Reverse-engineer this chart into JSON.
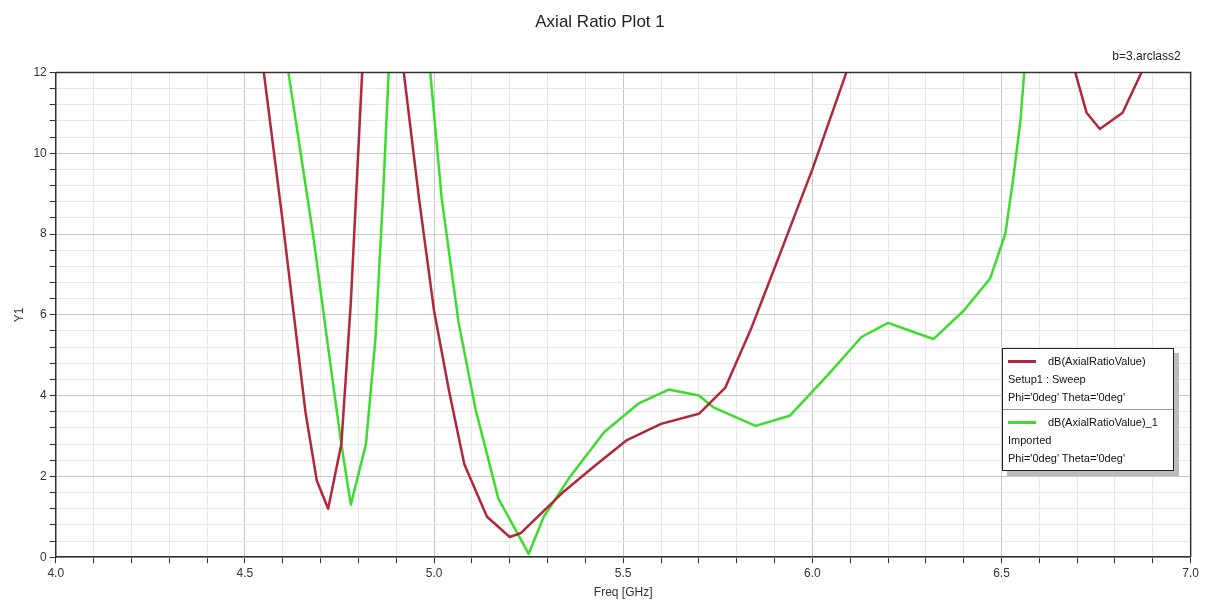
{
  "chart_data": {
    "type": "line",
    "title": "Axial Ratio Plot 1",
    "xlabel": "Freq [GHz]",
    "ylabel": "Y1",
    "annotations": [
      "b=3.arclass2"
    ],
    "xlim": [
      4,
      7
    ],
    "ylim": [
      0,
      12
    ],
    "xticks": [
      {
        "value": 4,
        "label": "4.0"
      },
      {
        "value": 4.1,
        "label": null
      },
      {
        "value": 4.2,
        "label": null
      },
      {
        "value": 4.3,
        "label": null
      },
      {
        "value": 4.4,
        "label": null
      },
      {
        "value": 4.5,
        "label": "4.5"
      },
      {
        "value": 4.6,
        "label": null
      },
      {
        "value": 4.7,
        "label": null
      },
      {
        "value": 4.8,
        "label": null
      },
      {
        "value": 4.9,
        "label": null
      },
      {
        "value": 5,
        "label": "5.0"
      },
      {
        "value": 5.1,
        "label": null
      },
      {
        "value": 5.2,
        "label": null
      },
      {
        "value": 5.3,
        "label": null
      },
      {
        "value": 5.4,
        "label": null
      },
      {
        "value": 5.5,
        "label": "5.5"
      },
      {
        "value": 5.6,
        "label": null
      },
      {
        "value": 5.7,
        "label": null
      },
      {
        "value": 5.8,
        "label": null
      },
      {
        "value": 5.9,
        "label": null
      },
      {
        "value": 6,
        "label": "6.0"
      },
      {
        "value": 6.1,
        "label": null
      },
      {
        "value": 6.2,
        "label": null
      },
      {
        "value": 6.3,
        "label": null
      },
      {
        "value": 6.4,
        "label": null
      },
      {
        "value": 6.5,
        "label": "6.5"
      },
      {
        "value": 6.6,
        "label": null
      },
      {
        "value": 6.7,
        "label": null
      },
      {
        "value": 6.8,
        "label": null
      },
      {
        "value": 6.9,
        "label": null
      },
      {
        "value": 7,
        "label": "7.0"
      }
    ],
    "yticks": [
      0,
      {
        "value": 0.4,
        "label": null
      },
      {
        "value": 0.8,
        "label": null
      },
      {
        "value": 1.2,
        "label": null
      },
      {
        "value": 1.6,
        "label": null
      },
      2,
      {
        "value": 2.4,
        "label": null
      },
      {
        "value": 2.8,
        "label": null
      },
      {
        "value": 3.2,
        "label": null
      },
      {
        "value": 3.6,
        "label": null
      },
      4,
      {
        "value": 4.4,
        "label": null
      },
      {
        "value": 4.8,
        "label": null
      },
      {
        "value": 5.2,
        "label": null
      },
      {
        "value": 5.6,
        "label": null
      },
      6,
      {
        "value": 6.4,
        "label": null
      },
      {
        "value": 6.8,
        "label": null
      },
      {
        "value": 7.2,
        "label": null
      },
      {
        "value": 7.6,
        "label": null
      },
      8,
      {
        "value": 8.4,
        "label": null
      },
      {
        "value": 8.8,
        "label": null
      },
      {
        "value": 9.2,
        "label": null
      },
      {
        "value": 9.6,
        "label": null
      },
      10,
      {
        "value": 10.4,
        "label": null
      },
      {
        "value": 10.8,
        "label": null
      },
      {
        "value": 11.2,
        "label": null
      },
      {
        "value": 11.6,
        "label": null
      },
      12
    ],
    "grid": true,
    "legend": "right",
    "line_style": "solid",
    "marker": "none",
    "series": [
      {
        "name": "dB(AxialRatioValue)\nSetup1 : Sweep\nPhi='0deg' Theta='0deg'",
        "color": "#b0283a",
        "x": [
          4.55,
          4.6,
          4.66,
          4.69,
          4.72,
          4.755,
          4.78,
          4.81,
          4.815,
          4.92,
          4.96,
          5.0,
          5.04,
          5.08,
          5.14,
          5.2,
          5.23,
          5.34,
          5.43,
          5.51,
          5.6,
          5.7,
          5.77,
          5.84,
          5.91,
          6.0,
          6.09,
          6.1,
          6.695,
          6.725,
          6.76,
          6.82,
          6.87
        ],
        "values": [
          12,
          8.3,
          3.6,
          1.9,
          1.2,
          2.8,
          6.3,
          12,
          null,
          12,
          8.9,
          6.1,
          4.1,
          2.3,
          1.0,
          0.5,
          0.6,
          1.6,
          2.3,
          2.9,
          3.3,
          3.55,
          4.2,
          5.7,
          7.4,
          9.6,
          12,
          null,
          12,
          11.0,
          10.6,
          11.0,
          12
        ]
      },
      {
        "name": "dB(AxialRatioValue)_1\nImported\nPhi='0deg' Theta='0deg'",
        "color": "#3ddc2e",
        "x": [
          4.615,
          4.68,
          4.73,
          4.755,
          4.78,
          4.82,
          4.845,
          4.865,
          4.88,
          4.9,
          4.99,
          5.02,
          5.065,
          5.11,
          5.17,
          5.22,
          5.25,
          5.29,
          5.36,
          5.45,
          5.54,
          5.62,
          5.7,
          5.74,
          5.85,
          5.94,
          6.04,
          6.13,
          6.2,
          6.26,
          6.32,
          6.4,
          6.47,
          6.51,
          6.53,
          6.55,
          6.56
        ],
        "values": [
          12,
          8.0,
          4.5,
          2.8,
          1.3,
          2.8,
          5.4,
          8.9,
          12,
          null,
          12,
          8.9,
          5.8,
          3.65,
          1.45,
          0.6,
          0.08,
          1.0,
          2.0,
          3.1,
          3.8,
          4.15,
          4.0,
          3.7,
          3.25,
          3.5,
          4.5,
          5.45,
          5.8,
          5.6,
          5.4,
          6.1,
          6.9,
          8.0,
          9.3,
          10.8,
          12
        ]
      }
    ]
  }
}
